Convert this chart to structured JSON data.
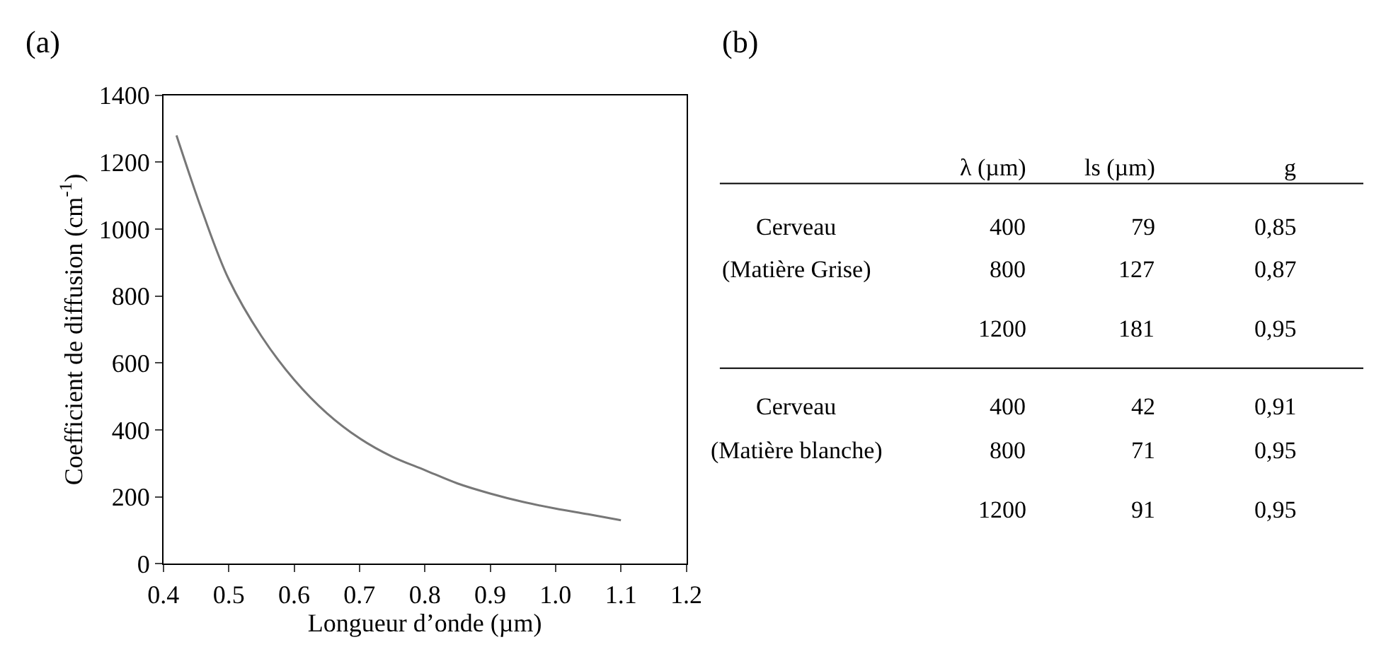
{
  "chart_data": [
    {
      "type": "line",
      "title": "(a)",
      "xlabel": "Longueur d’onde (µm)",
      "ylabel": "Coefficient de diffusion (cm$^{-1}$)",
      "x": [
        0.42,
        0.46,
        0.5,
        0.55,
        0.6,
        0.65,
        0.7,
        0.75,
        0.8,
        0.85,
        0.9,
        0.95,
        1.0,
        1.05,
        1.1
      ],
      "series": [
        {
          "color": "#777777",
          "values": [
            1280,
            1050,
            850,
            680,
            550,
            450,
            375,
            320,
            280,
            240,
            210,
            185,
            165,
            148,
            130
          ]
        }
      ],
      "xlim": [
        0.4,
        1.2
      ],
      "xticks": [
        0.4,
        0.5,
        0.6,
        0.7,
        0.8,
        0.9,
        {
          "value": 1,
          "label": "1.0"
        },
        1.1,
        1.2
      ],
      "ylim": [
        0,
        1400
      ],
      "yticks": [
        0,
        200,
        400,
        600,
        800,
        1000,
        1200,
        1400
      ],
      "marker": "none",
      "line_style": "solid"
    },
    {
      "type": "other",
      "title": "(b)",
      "annotations": [
        "λ (µm)",
        "ls (µm)",
        "g",
        "Cerveau",
        "400",
        "79",
        "0,85",
        "(Matière Grise)",
        "800",
        "127",
        "0,87",
        "1200",
        "181",
        "0,95",
        "Cerveau",
        "400",
        "42",
        "0,91",
        "(Matière blanche)",
        "800",
        "71",
        "0,95",
        "1200",
        "91",
        "0,95"
      ]
    }
  ]
}
